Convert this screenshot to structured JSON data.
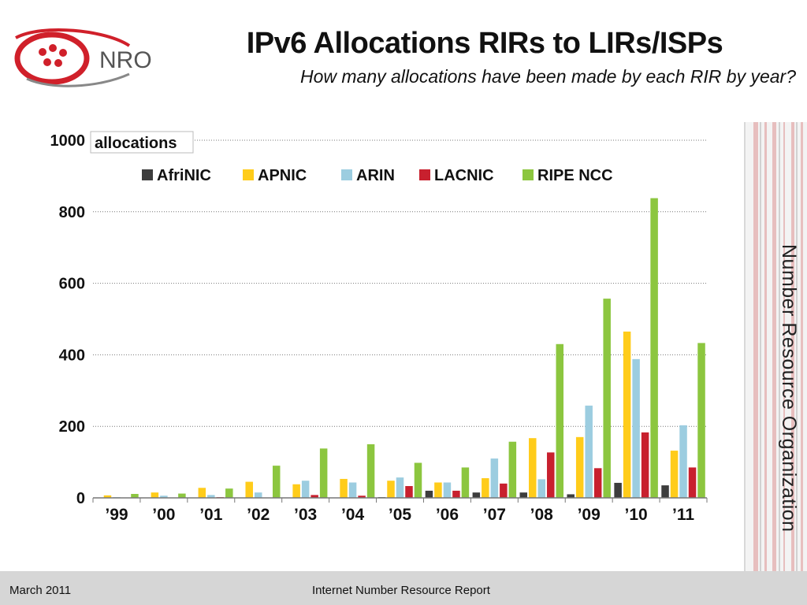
{
  "logo": {
    "text": "NRO"
  },
  "title": "IPv6 Allocations RIRs to LIRs/ISPs",
  "subtitle": "How many allocations have been made by each RIR by year?",
  "side_label": "Number Resource Organization",
  "footer": {
    "date": "March 2011",
    "report": "Internet Number Resource Report"
  },
  "colors": {
    "AfriNIC": "#3d3d3d",
    "APNIC": "#ffcc1a",
    "ARIN": "#9ccde0",
    "LACNIC": "#c8202e",
    "RIPE NCC": "#8cc63f",
    "logo_red": "#d0202a"
  },
  "chart_data": {
    "type": "bar",
    "ylabel": "allocations",
    "ylim": [
      0,
      1000
    ],
    "yticks": [
      "0",
      "200",
      "400",
      "600",
      "800",
      "1000"
    ],
    "grid": true,
    "legend_position": "top",
    "categories": [
      "’99",
      "’00",
      "’01",
      "’02",
      "’03",
      "’04",
      "’05",
      "’06",
      "’07",
      "’08",
      "’09",
      "’10",
      "’11"
    ],
    "series": [
      {
        "name": "AfriNIC",
        "values": [
          0,
          0,
          0,
          0,
          0,
          0,
          2,
          20,
          15,
          15,
          10,
          42,
          35
        ]
      },
      {
        "name": "APNIC",
        "values": [
          7,
          15,
          28,
          45,
          38,
          53,
          48,
          43,
          55,
          167,
          170,
          465,
          132
        ]
      },
      {
        "name": "ARIN",
        "values": [
          2,
          6,
          8,
          15,
          48,
          43,
          57,
          43,
          110,
          52,
          258,
          388,
          203
        ]
      },
      {
        "name": "LACNIC",
        "values": [
          0,
          0,
          2,
          0,
          8,
          6,
          33,
          20,
          40,
          127,
          83,
          183,
          85
        ]
      },
      {
        "name": "RIPE NCC",
        "values": [
          11,
          12,
          26,
          90,
          138,
          150,
          98,
          85,
          157,
          430,
          557,
          838,
          433
        ]
      }
    ]
  }
}
